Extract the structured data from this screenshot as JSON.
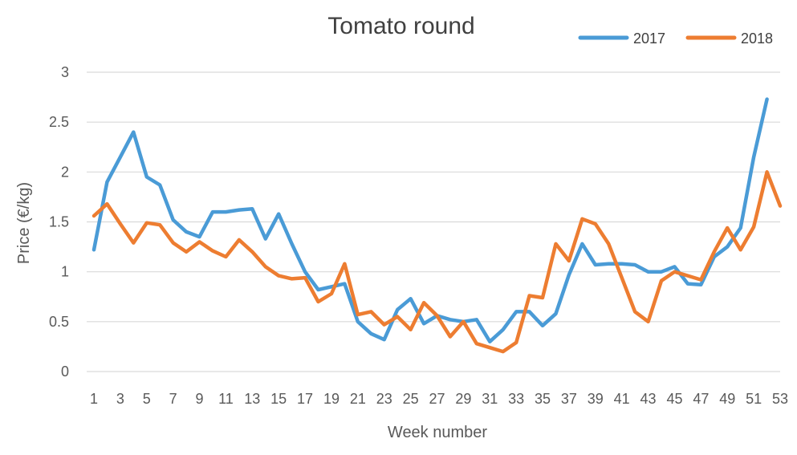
{
  "chart_data": {
    "type": "line",
    "title": "Tomato round",
    "xlabel": "Week number",
    "ylabel": "Price (€/kg)",
    "xlim": [
      1,
      53
    ],
    "ylim": [
      0,
      3
    ],
    "yticks": [
      0,
      0.5,
      1,
      1.5,
      2,
      2.5,
      3
    ],
    "ytick_labels": [
      "0",
      "0.5",
      "1",
      "1.5",
      "2",
      "2.5",
      "3"
    ],
    "xticks": [
      1,
      3,
      5,
      7,
      9,
      11,
      13,
      15,
      17,
      19,
      21,
      23,
      25,
      27,
      29,
      31,
      33,
      35,
      37,
      39,
      41,
      43,
      45,
      47,
      49,
      51,
      53
    ],
    "grid": true,
    "legend_position": "top-right",
    "series": [
      {
        "name": "2017",
        "color": "#4a9bd6",
        "x": [
          1,
          2,
          3,
          4,
          5,
          6,
          7,
          8,
          9,
          10,
          11,
          12,
          13,
          14,
          15,
          16,
          17,
          18,
          19,
          20,
          21,
          22,
          23,
          24,
          25,
          26,
          27,
          28,
          29,
          30,
          31,
          32,
          33,
          34,
          35,
          36,
          37,
          38,
          39,
          40,
          41,
          42,
          43,
          44,
          45,
          46,
          47,
          48,
          49,
          50,
          51,
          52
        ],
        "values": [
          1.22,
          1.9,
          2.15,
          2.4,
          1.95,
          1.87,
          1.52,
          1.4,
          1.35,
          1.6,
          1.6,
          1.62,
          1.63,
          1.33,
          1.58,
          1.28,
          1.0,
          0.82,
          0.85,
          0.88,
          0.5,
          0.38,
          0.32,
          0.62,
          0.73,
          0.48,
          0.56,
          0.52,
          0.5,
          0.52,
          0.3,
          0.42,
          0.6,
          0.6,
          0.46,
          0.58,
          0.97,
          1.28,
          1.07,
          1.08,
          1.08,
          1.07,
          1.0,
          1.0,
          1.05,
          0.88,
          0.87,
          1.15,
          1.25,
          1.44,
          2.15,
          2.73
        ]
      },
      {
        "name": "2018",
        "color": "#ed7d31",
        "x": [
          1,
          2,
          3,
          4,
          5,
          6,
          7,
          8,
          9,
          10,
          11,
          12,
          13,
          14,
          15,
          16,
          17,
          18,
          19,
          20,
          21,
          22,
          23,
          24,
          25,
          26,
          27,
          28,
          29,
          30,
          31,
          32,
          33,
          34,
          35,
          36,
          37,
          38,
          39,
          40,
          41,
          42,
          43,
          44,
          45,
          46,
          47,
          48,
          49,
          50,
          51,
          52,
          53
        ],
        "values": [
          1.56,
          1.68,
          1.48,
          1.29,
          1.49,
          1.47,
          1.29,
          1.2,
          1.3,
          1.21,
          1.15,
          1.32,
          1.2,
          1.05,
          0.96,
          0.93,
          0.94,
          0.7,
          0.78,
          1.08,
          0.57,
          0.6,
          0.47,
          0.55,
          0.42,
          0.69,
          0.56,
          0.35,
          0.5,
          0.28,
          0.24,
          0.2,
          0.29,
          0.76,
          0.74,
          1.28,
          1.11,
          1.53,
          1.48,
          1.28,
          0.94,
          0.6,
          0.5,
          0.91,
          1.0,
          0.96,
          0.92,
          1.2,
          1.44,
          1.22,
          1.45,
          2.0,
          1.66
        ]
      }
    ]
  }
}
